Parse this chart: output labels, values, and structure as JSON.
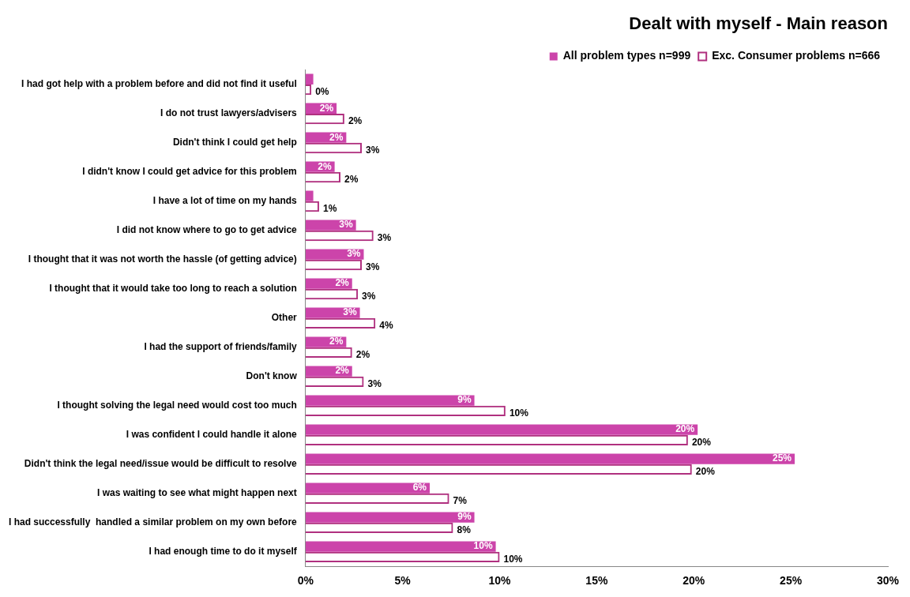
{
  "chart_data": {
    "type": "bar",
    "orientation": "horizontal",
    "title": "Dealt with myself - Main reason",
    "categories": [
      "I had got help with a problem before and did not find it useful",
      "I do not trust lawyers/advisers",
      "Didn't think I could get help",
      "I didn't know I could get advice for this problem",
      "I have a lot of time on my hands",
      "I did not know where to go to get advice",
      "I thought that it was not worth the hassle (of getting advice)",
      "I thought that it would take too long to reach a solution",
      "Other",
      "I had the support of friends/family",
      "Don't know",
      "I thought solving the legal need would cost too much",
      "I was confident I could handle it alone",
      "Didn't think the legal need/issue would be difficult to resolve",
      "I was waiting to see what might happen next",
      "I had successfully  handled a similar problem on my own before",
      "I had enough time to do it myself"
    ],
    "series": [
      {
        "name": "All problem types n=999",
        "color": "#cc44aa",
        "values": [
          0.4,
          1.6,
          2.1,
          1.5,
          0.4,
          2.6,
          3.0,
          2.4,
          2.8,
          2.1,
          2.4,
          8.7,
          20.2,
          25.2,
          6.4,
          8.7,
          9.8
        ],
        "value_labels": [
          null,
          "2%",
          "2%",
          "2%",
          null,
          "3%",
          "3%",
          "2%",
          "3%",
          "2%",
          "2%",
          "9%",
          "20%",
          "25%",
          "6%",
          "9%",
          "10%"
        ]
      },
      {
        "name": "Exc. Consumer problems n=666",
        "color": "#b0307f",
        "values": [
          0.3,
          2.0,
          2.9,
          1.8,
          0.7,
          3.5,
          2.9,
          2.7,
          3.6,
          2.4,
          3.0,
          10.3,
          19.7,
          19.9,
          7.4,
          7.6,
          10.0
        ],
        "value_labels": [
          "0%",
          "2%",
          "3%",
          "2%",
          "1%",
          "3%",
          "3%",
          "3%",
          "4%",
          "2%",
          "3%",
          "10%",
          "20%",
          "20%",
          "7%",
          "8%",
          "10%"
        ]
      }
    ],
    "xlim": [
      0,
      30
    ],
    "xticks": [
      {
        "value": 0,
        "label": "0%"
      },
      {
        "value": 5,
        "label": "5%"
      },
      {
        "value": 10,
        "label": "10%"
      },
      {
        "value": 15,
        "label": "15%"
      },
      {
        "value": 20,
        "label": "20%"
      },
      {
        "value": 25,
        "label": "25%"
      },
      {
        "value": 30,
        "label": "30%"
      }
    ],
    "grid": false,
    "legend": "top right"
  }
}
